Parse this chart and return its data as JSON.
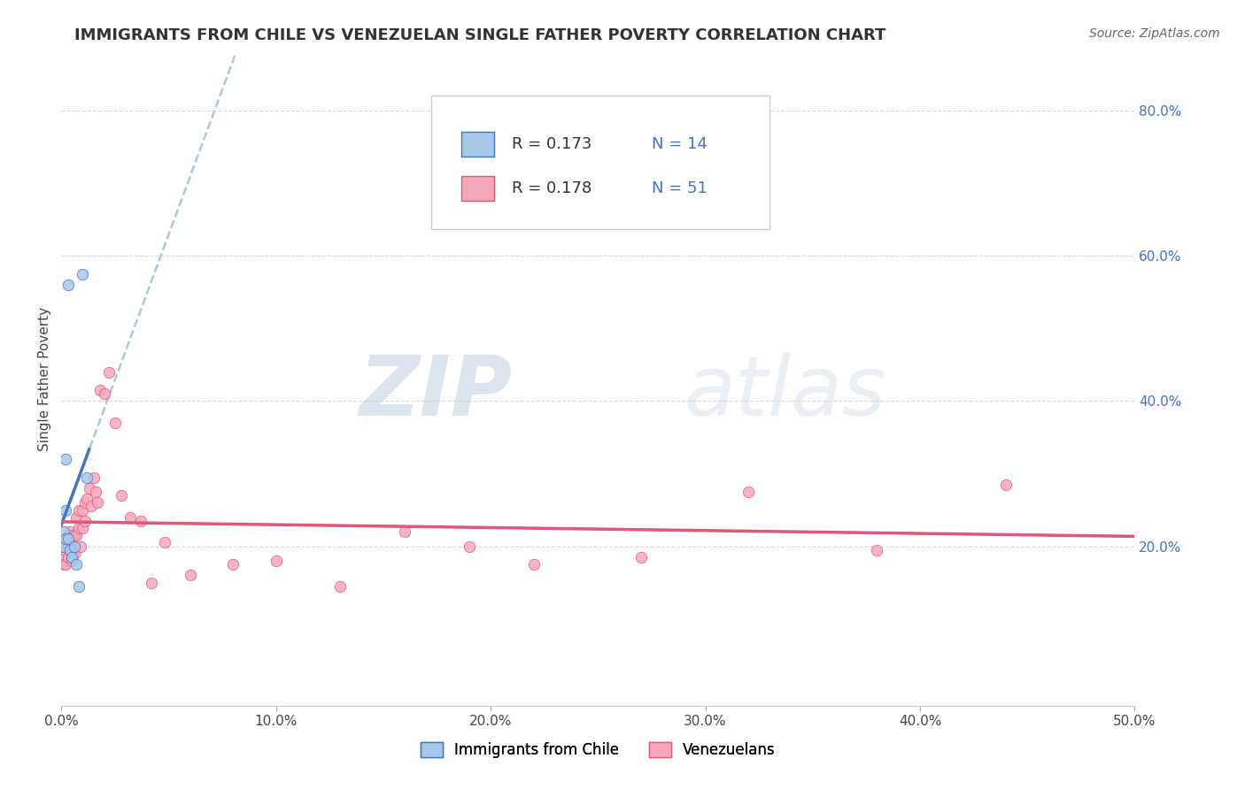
{
  "title": "IMMIGRANTS FROM CHILE VS VENEZUELAN SINGLE FATHER POVERTY CORRELATION CHART",
  "source": "Source: ZipAtlas.com",
  "ylabel": "Single Father Poverty",
  "xlim": [
    0.0,
    0.5
  ],
  "ylim": [
    -0.02,
    0.88
  ],
  "xticks": [
    0.0,
    0.1,
    0.2,
    0.3,
    0.4,
    0.5
  ],
  "xticklabels": [
    "0.0%",
    "10.0%",
    "20.0%",
    "30.0%",
    "40.0%",
    "50.0%"
  ],
  "yticks_right": [
    0.2,
    0.4,
    0.6,
    0.8
  ],
  "yticklabels_right": [
    "20.0%",
    "40.0%",
    "60.0%",
    "80.0%"
  ],
  "legend_label1": "Immigrants from Chile",
  "legend_label2": "Venezuelans",
  "r1": "0.173",
  "n1": "14",
  "r2": "0.178",
  "n2": "51",
  "color_chile": "#a8c8e8",
  "color_venezuela": "#f5a8bc",
  "color_trendline_chile": "#4472c4",
  "color_trendline_venezuela": "#e05878",
  "color_dashed": "#a8c8e0",
  "watermark_zip": "ZIP",
  "watermark_atlas": "atlas",
  "background_color": "#ffffff",
  "grid_color": "#d8d8d8",
  "chile_x": [
    0.001,
    0.001,
    0.002,
    0.002,
    0.002,
    0.003,
    0.003,
    0.004,
    0.005,
    0.006,
    0.007,
    0.008,
    0.01,
    0.012
  ],
  "chile_y": [
    0.2,
    0.22,
    0.32,
    0.25,
    0.21,
    0.56,
    0.21,
    0.195,
    0.185,
    0.2,
    0.175,
    0.145,
    0.575,
    0.295
  ],
  "venezuela_x": [
    0.001,
    0.001,
    0.001,
    0.002,
    0.002,
    0.002,
    0.003,
    0.003,
    0.003,
    0.004,
    0.004,
    0.005,
    0.005,
    0.005,
    0.006,
    0.006,
    0.007,
    0.007,
    0.008,
    0.008,
    0.009,
    0.01,
    0.01,
    0.011,
    0.011,
    0.012,
    0.013,
    0.014,
    0.015,
    0.016,
    0.017,
    0.018,
    0.02,
    0.022,
    0.025,
    0.028,
    0.032,
    0.037,
    0.042,
    0.048,
    0.06,
    0.08,
    0.1,
    0.13,
    0.16,
    0.19,
    0.22,
    0.27,
    0.32,
    0.38,
    0.44
  ],
  "venezuela_y": [
    0.2,
    0.185,
    0.175,
    0.21,
    0.195,
    0.175,
    0.215,
    0.2,
    0.185,
    0.22,
    0.195,
    0.21,
    0.195,
    0.18,
    0.215,
    0.19,
    0.24,
    0.215,
    0.25,
    0.225,
    0.2,
    0.25,
    0.225,
    0.26,
    0.235,
    0.265,
    0.28,
    0.255,
    0.295,
    0.275,
    0.26,
    0.415,
    0.41,
    0.44,
    0.37,
    0.27,
    0.24,
    0.235,
    0.15,
    0.205,
    0.16,
    0.175,
    0.18,
    0.145,
    0.22,
    0.2,
    0.175,
    0.185,
    0.275,
    0.195,
    0.285
  ]
}
